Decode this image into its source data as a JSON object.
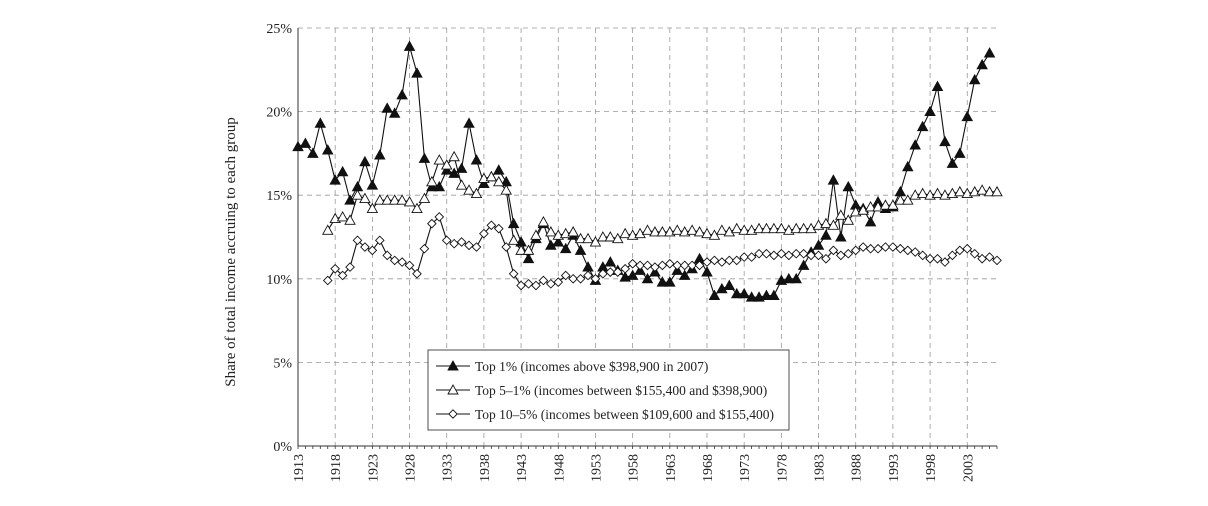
{
  "chart_data": {
    "type": "line",
    "title": "",
    "xlabel": "",
    "ylabel": "Share of total income accruing to each group",
    "xlim": [
      1913,
      2007
    ],
    "ylim": [
      0,
      25
    ],
    "grid": true,
    "legend_position": "bottom-center",
    "y_ticks": [
      0,
      5,
      10,
      15,
      20,
      25
    ],
    "y_tick_labels": [
      "0%",
      "5%",
      "10%",
      "15%",
      "20%",
      "25%"
    ],
    "x_ticks": [
      1913,
      1918,
      1923,
      1928,
      1933,
      1938,
      1943,
      1948,
      1953,
      1958,
      1963,
      1968,
      1973,
      1978,
      1983,
      1988,
      1993,
      1998,
      2003
    ],
    "x_tick_labels": [
      "1913",
      "1918",
      "1923",
      "1928",
      "1933",
      "1938",
      "1943",
      "1948",
      "1953",
      "1958",
      "1963",
      "1968",
      "1973",
      "1978",
      "1983",
      "1988",
      "1993",
      "1998",
      "2003"
    ],
    "series": [
      {
        "name": "Top 1% (incomes above $398,900 in 2007)",
        "marker": "filled-triangle",
        "start_year": 1913,
        "values": [
          17.9,
          18.1,
          17.5,
          19.3,
          17.7,
          15.9,
          16.4,
          14.7,
          15.5,
          17.0,
          15.6,
          17.4,
          20.2,
          19.9,
          21.0,
          23.9,
          22.3,
          17.2,
          15.5,
          15.5,
          16.5,
          16.3,
          16.6,
          19.3,
          17.1,
          15.7,
          16.1,
          16.5,
          15.8,
          13.3,
          12.2,
          11.2,
          12.4,
          13.3,
          12.0,
          12.2,
          11.8,
          12.6,
          11.7,
          10.7,
          9.9,
          10.7,
          11.0,
          10.5,
          10.1,
          10.2,
          10.5,
          10.0,
          10.4,
          9.8,
          9.8,
          10.5,
          10.2,
          10.6,
          11.2,
          10.4,
          9.0,
          9.4,
          9.6,
          9.1,
          9.1,
          8.9,
          8.9,
          9.0,
          9.0,
          9.9,
          10.0,
          10.0,
          10.8,
          11.6,
          12.0,
          12.6,
          15.9,
          12.5,
          15.5,
          14.4,
          14.2,
          13.4,
          14.6,
          14.2,
          14.3,
          15.2,
          16.7,
          18.0,
          19.1,
          20.0,
          21.5,
          18.2,
          16.9,
          17.5,
          19.7,
          21.9,
          22.8,
          23.5
        ]
      },
      {
        "name": "Top 5–1% (incomes between $155,400 and $398,900)",
        "marker": "open-triangle",
        "start_year": 1917,
        "values": [
          12.9,
          13.6,
          13.7,
          13.5,
          15.0,
          14.8,
          14.2,
          14.7,
          14.7,
          14.7,
          14.7,
          14.6,
          14.2,
          14.8,
          15.8,
          17.1,
          16.8,
          17.3,
          15.6,
          15.3,
          15.1,
          16.0,
          16.1,
          15.8,
          15.3,
          12.3,
          11.7,
          11.7,
          12.6,
          13.4,
          12.8,
          12.6,
          12.7,
          12.8,
          12.4,
          12.4,
          12.2,
          12.5,
          12.5,
          12.4,
          12.7,
          12.6,
          12.7,
          12.9,
          12.8,
          12.8,
          12.8,
          12.9,
          12.8,
          12.9,
          12.8,
          12.7,
          12.6,
          12.9,
          12.8,
          13.0,
          12.9,
          12.9,
          13.0,
          13.0,
          13.0,
          13.0,
          12.9,
          13.0,
          13.0,
          13.0,
          13.2,
          13.3,
          13.2,
          13.8,
          13.5,
          14.0,
          14.1,
          14.3,
          14.3,
          14.4,
          14.4,
          14.7,
          14.7,
          15.0,
          15.1,
          15.0,
          15.1,
          15.0,
          15.1,
          15.2,
          15.1,
          15.2,
          15.3,
          15.2,
          15.2
        ]
      },
      {
        "name": "Top 10–5% (incomes between $109,600 and $155,400)",
        "marker": "open-diamond",
        "start_year": 1917,
        "values": [
          9.9,
          10.6,
          10.2,
          10.7,
          12.3,
          11.9,
          11.7,
          12.3,
          11.4,
          11.1,
          11.0,
          10.8,
          10.3,
          11.8,
          13.3,
          13.7,
          12.3,
          12.1,
          12.2,
          12.0,
          11.9,
          12.7,
          13.2,
          13.0,
          11.9,
          10.3,
          9.6,
          9.7,
          9.6,
          9.9,
          9.7,
          9.8,
          10.2,
          10.0,
          10.0,
          10.2,
          10.0,
          10.3,
          10.4,
          10.4,
          10.6,
          10.9,
          10.8,
          10.8,
          10.7,
          10.8,
          10.9,
          10.8,
          10.8,
          10.8,
          10.8,
          11.0,
          11.1,
          11.0,
          11.1,
          11.1,
          11.3,
          11.3,
          11.5,
          11.5,
          11.4,
          11.5,
          11.4,
          11.5,
          11.5,
          11.4,
          11.4,
          11.2,
          11.7,
          11.4,
          11.5,
          11.7,
          11.9,
          11.8,
          11.8,
          11.9,
          11.9,
          11.8,
          11.7,
          11.6,
          11.4,
          11.2,
          11.2,
          11.0,
          11.4,
          11.7,
          11.8,
          11.5,
          11.2,
          11.3,
          11.1
        ]
      }
    ]
  }
}
